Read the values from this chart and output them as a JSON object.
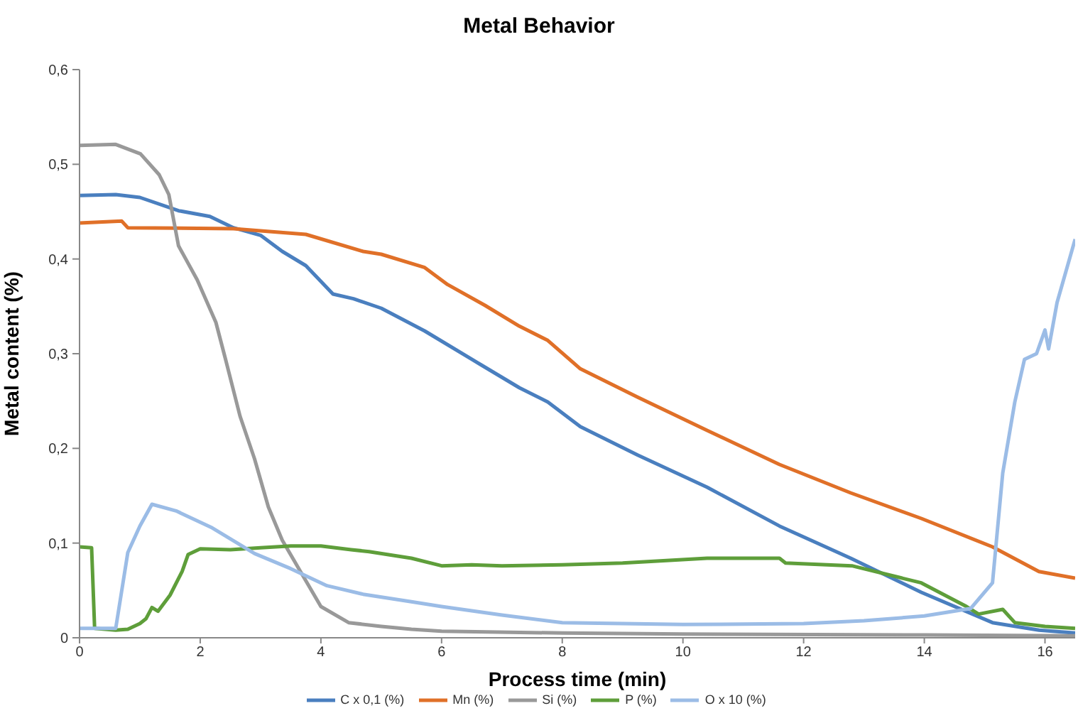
{
  "chart_data": {
    "type": "line",
    "title": "Metal Behavior",
    "xlabel": "Process time (min)",
    "ylabel": "Metal content (%)",
    "xlim": [
      0,
      16.5
    ],
    "xticks": [
      0,
      2,
      4,
      6,
      8,
      10,
      12,
      14,
      16
    ],
    "ylim": [
      0,
      0.6
    ],
    "yticks": [
      0,
      {
        "value": 0.1,
        "label": "0,1"
      },
      {
        "value": 0.2,
        "label": "0,2"
      },
      {
        "value": 0.3,
        "label": "0,3"
      },
      {
        "value": 0.4,
        "label": "0,4"
      },
      {
        "value": 0.5,
        "label": "0,5"
      },
      {
        "value": 0.6,
        "label": "0,6"
      }
    ],
    "grid": false,
    "legend": "bottom",
    "marker": "none",
    "line_style": "solid",
    "series": [
      {
        "name": "C x 0,1 (%)",
        "color": "#4a7fbf",
        "x": [
          0,
          0.6,
          1.0,
          1.64,
          2.16,
          2.55,
          3.0,
          3.36,
          3.75,
          4.2,
          4.54,
          5.0,
          5.72,
          6.66,
          7.29,
          7.76,
          8.3,
          9.25,
          10.4,
          11.6,
          12.78,
          13.95,
          15.13,
          15.9,
          16.5
        ],
        "values": [
          0.467,
          0.468,
          0.465,
          0.451,
          0.445,
          0.433,
          0.425,
          0.408,
          0.393,
          0.363,
          0.358,
          0.348,
          0.324,
          0.288,
          0.264,
          0.249,
          0.223,
          0.193,
          0.159,
          0.118,
          0.084,
          0.048,
          0.016,
          0.008,
          0.005
        ]
      },
      {
        "name": "Mn (%)",
        "color": "#e07028",
        "x": [
          0,
          0.7,
          0.8,
          2.55,
          3.75,
          4.7,
          5.0,
          5.72,
          6.1,
          6.72,
          7.29,
          7.76,
          8.3,
          9.25,
          10.4,
          11.6,
          12.78,
          13.95,
          15.13,
          15.9,
          16.5
        ],
        "values": [
          0.438,
          0.44,
          0.433,
          0.432,
          0.426,
          0.408,
          0.405,
          0.391,
          0.373,
          0.351,
          0.329,
          0.314,
          0.284,
          0.254,
          0.219,
          0.183,
          0.153,
          0.126,
          0.096,
          0.07,
          0.063
        ]
      },
      {
        "name": "Si (%)",
        "color": "#999999",
        "x": [
          0,
          0.6,
          1.01,
          1.32,
          1.48,
          1.64,
          1.95,
          2.26,
          2.42,
          2.66,
          2.9,
          3.13,
          3.36,
          3.67,
          4.0,
          4.46,
          5.0,
          5.5,
          6.0,
          8.0,
          10.0,
          14.0,
          16.5
        ],
        "values": [
          0.52,
          0.521,
          0.511,
          0.489,
          0.468,
          0.414,
          0.378,
          0.333,
          0.294,
          0.234,
          0.189,
          0.138,
          0.103,
          0.069,
          0.033,
          0.016,
          0.012,
          0.009,
          0.007,
          0.005,
          0.004,
          0.003,
          0.002
        ]
      },
      {
        "name": "P (%)",
        "color": "#5e9e3a",
        "x": [
          0,
          0.2,
          0.25,
          0.6,
          0.8,
          1.0,
          1.1,
          1.2,
          1.3,
          1.5,
          1.7,
          1.8,
          2.0,
          2.5,
          3.0,
          3.5,
          4.0,
          4.5,
          4.8,
          5.5,
          6.0,
          6.5,
          7.0,
          8.0,
          9.0,
          10.4,
          11.6,
          11.7,
          12.8,
          13.95,
          14.7,
          14.9,
          15.3,
          15.5,
          16.0,
          16.5
        ],
        "values": [
          0.096,
          0.095,
          0.01,
          0.008,
          0.009,
          0.015,
          0.02,
          0.032,
          0.028,
          0.045,
          0.07,
          0.088,
          0.094,
          0.093,
          0.095,
          0.097,
          0.097,
          0.093,
          0.091,
          0.084,
          0.076,
          0.077,
          0.076,
          0.077,
          0.079,
          0.084,
          0.084,
          0.079,
          0.076,
          0.058,
          0.033,
          0.025,
          0.03,
          0.016,
          0.012,
          0.01
        ]
      },
      {
        "name": "O x 10 (%)",
        "color": "#9bbce6",
        "x": [
          0,
          0.6,
          0.7,
          0.8,
          1.0,
          1.2,
          1.6,
          2.2,
          2.9,
          3.5,
          4.1,
          4.7,
          5.5,
          6.0,
          7.0,
          8.0,
          10.0,
          12.0,
          13.0,
          14.0,
          14.77,
          15.13,
          15.3,
          15.5,
          15.66,
          15.86,
          16.0,
          16.06,
          16.2,
          16.5
        ],
        "values": [
          0.01,
          0.01,
          0.05,
          0.09,
          0.118,
          0.141,
          0.134,
          0.116,
          0.089,
          0.073,
          0.055,
          0.046,
          0.038,
          0.033,
          0.024,
          0.016,
          0.014,
          0.015,
          0.018,
          0.023,
          0.031,
          0.058,
          0.174,
          0.249,
          0.294,
          0.3,
          0.325,
          0.305,
          0.354,
          0.421
        ]
      }
    ]
  }
}
